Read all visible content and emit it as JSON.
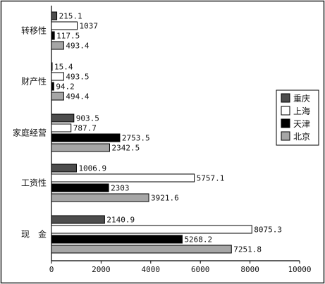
{
  "chart_data": {
    "type": "bar",
    "orientation": "horizontal",
    "categories": [
      "转移性",
      "财产性",
      "家庭经营",
      "工资性",
      "现　金"
    ],
    "series": [
      {
        "name": "重庆",
        "color": "#4d4d4d",
        "values": [
          215.1,
          15.4,
          903.5,
          1006.9,
          2140.9
        ],
        "labels": [
          "215.1",
          "15.4",
          "903.5",
          "1006.9",
          "2140.9"
        ]
      },
      {
        "name": "上海",
        "color": "#ffffff",
        "values": [
          1037,
          493.5,
          787.7,
          5757.1,
          8075.3
        ],
        "labels": [
          "1037",
          "493.5",
          "787.7",
          "5757.1",
          "8075.3"
        ]
      },
      {
        "name": "天津",
        "color": "#000000",
        "values": [
          117.5,
          94.2,
          2753.5,
          2303,
          5268.2
        ],
        "labels": [
          "117.5",
          "94.2",
          "2753.5",
          "2303",
          "5268.2"
        ]
      },
      {
        "name": "北京",
        "color": "#a6a6a6",
        "values": [
          493.4,
          494.4,
          2342.5,
          3921.6,
          7251.8
        ],
        "labels": [
          "493.4",
          "494.4",
          "2342.5",
          "3921.6",
          "7251.8"
        ]
      }
    ],
    "xlim": [
      0,
      10000
    ],
    "xticks": [
      0,
      2000,
      4000,
      6000,
      8000,
      10000
    ],
    "xtick_labels": [
      "0",
      "2000",
      "4000",
      "6000",
      "8000",
      "10000"
    ],
    "legend_position": "right",
    "grid": false
  }
}
